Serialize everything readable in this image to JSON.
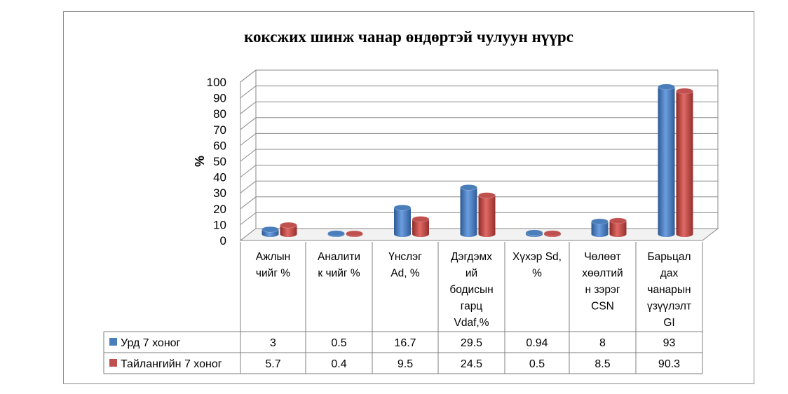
{
  "chart_data": {
    "type": "bar",
    "title": "коксжих шинж чанар өндөртэй чулуун нүүрс",
    "ylabel": "%",
    "xlabel": "",
    "ylim": [
      0,
      100
    ],
    "yticks": [
      0,
      10,
      20,
      30,
      40,
      50,
      60,
      70,
      80,
      90,
      100
    ],
    "grid": true,
    "categories": [
      [
        "Ажлын",
        "чийг %"
      ],
      [
        "Аналити",
        "к чийг %"
      ],
      [
        "Үнслэг",
        "Ad, %"
      ],
      [
        "Дэгдэмх",
        "ий",
        "бодисын",
        "гарц",
        "Vdaf,%"
      ],
      [
        "Хүхэр Sd,",
        "%"
      ],
      [
        "Чөлөөт",
        "хөөлтий",
        "н зэрэг",
        "CSN"
      ],
      [
        "Барьцал",
        "дах",
        "чанарын",
        "үзүүлэлт",
        "GI"
      ]
    ],
    "series": [
      {
        "name": "Урд 7 хоног",
        "color": "#4a7ebb",
        "values": [
          3,
          0.5,
          16.7,
          29.5,
          0.94,
          8,
          93
        ],
        "labels": [
          "3",
          "0.5",
          "16.7",
          "29.5",
          "0.94",
          "8",
          "93"
        ]
      },
      {
        "name": "Тайлангийн 7 хоног",
        "color": "#c0504d",
        "values": [
          5.7,
          0.4,
          9.5,
          24.5,
          0.5,
          8.5,
          90.3
        ],
        "labels": [
          "5.7",
          "0.4",
          "9.5",
          "24.5",
          "0.5",
          "8.5",
          "90.3"
        ]
      }
    ]
  }
}
